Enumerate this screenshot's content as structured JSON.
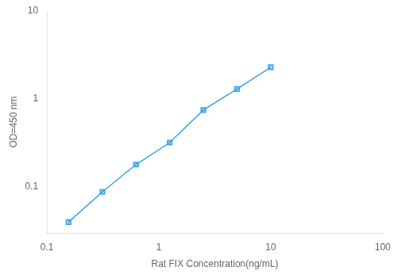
{
  "chart_data": {
    "type": "line",
    "x": [
      0.156,
      0.313,
      0.625,
      1.25,
      2.5,
      5.0,
      10.0
    ],
    "values": [
      0.04,
      0.088,
      0.18,
      0.32,
      0.75,
      1.3,
      2.3
    ],
    "xlabel": "Rat FIX Concentration(ng/mL)",
    "ylabel": "OD=450 nm",
    "xlim": [
      0.1,
      100
    ],
    "ylim": [
      0.03,
      10
    ],
    "xticks": [
      0.1,
      1,
      10,
      100
    ],
    "yticks": [
      0.1,
      1,
      10
    ],
    "log": true,
    "grid": false,
    "marker": "square"
  }
}
